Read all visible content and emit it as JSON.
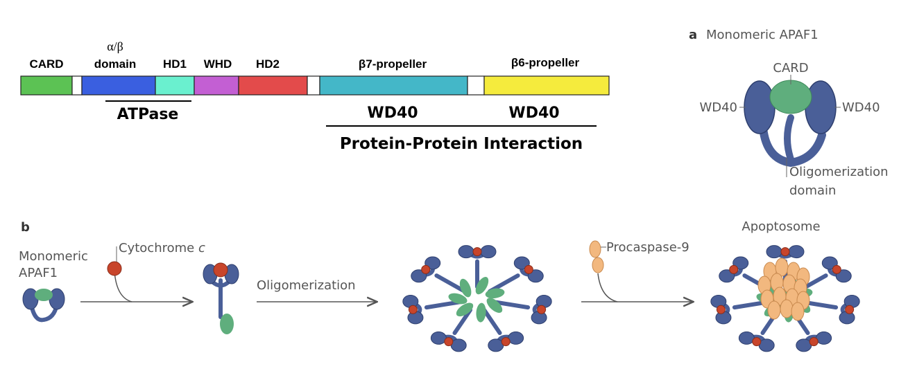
{
  "domain_bar": {
    "segments": [
      {
        "label": "CARD",
        "color": "#5cc254"
      },
      {
        "label": "",
        "color": "#ffffff"
      },
      {
        "label": "α/β",
        "label2": "domain",
        "color": "#3a5fe0"
      },
      {
        "label": "HD1",
        "color": "#6af0cf"
      },
      {
        "label": "WHD",
        "color": "#c35fd3"
      },
      {
        "label": "HD2",
        "color": "#e34b4b"
      },
      {
        "label": "",
        "color": "#ffffff"
      },
      {
        "label": "β7-propeller",
        "color": "#44b7c8"
      },
      {
        "label": "",
        "color": "#ffffff"
      },
      {
        "label": "β6-propeller",
        "color": "#f5eb3d"
      }
    ],
    "atpase_label": "ATPase",
    "wd40_left": "WD40",
    "wd40_right": "WD40",
    "ppi_label": "Protein-Protein Interaction"
  },
  "panel_a": {
    "letter": "a",
    "title": "Monomeric APAF1",
    "card": "CARD",
    "wd40_left": "WD40",
    "wd40_right": "WD40",
    "oligo_line1": "Oligomerization",
    "oligo_line2": "domain"
  },
  "panel_b": {
    "letter": "b",
    "monomer_line1": "Monomeric",
    "monomer_line2": "APAF1",
    "cytochrome": "Cytochrome ",
    "cytochrome_c": "c",
    "oligomerization": "Oligomerization",
    "procaspase": "Procaspase-9",
    "apoptosome": "Apoptosome"
  },
  "colors": {
    "apaf_blue": "#4a5f98",
    "apaf_green": "#5fae7d",
    "cyto_red": "#c8452b",
    "caspase_orange": "#f2b87f",
    "arrow": "#555555"
  }
}
